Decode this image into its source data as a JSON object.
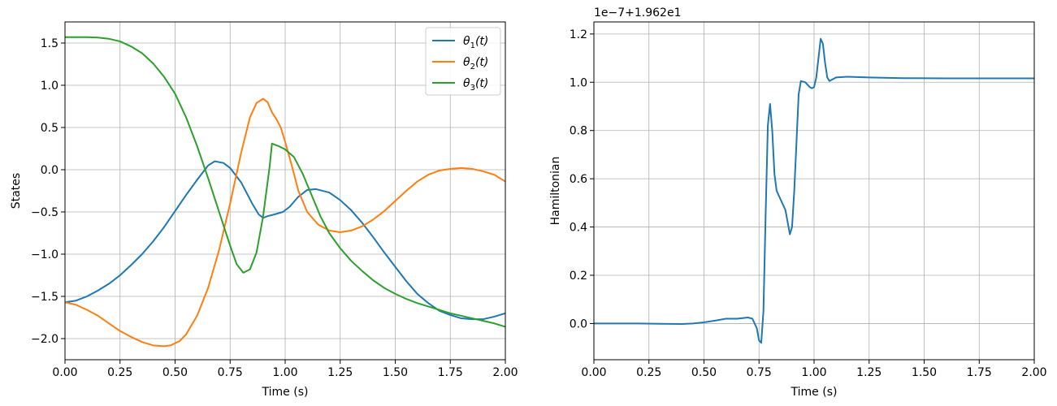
{
  "chart_data": [
    {
      "type": "line",
      "xlabel": "Time (s)",
      "ylabel": "States",
      "xlim": [
        0,
        2
      ],
      "ylim": [
        -2.25,
        1.75
      ],
      "xticks": [
        "0.00",
        "0.25",
        "0.50",
        "0.75",
        "1.00",
        "1.25",
        "1.50",
        "1.75",
        "2.00"
      ],
      "yticks": [
        "−2.0",
        "−1.5",
        "−1.0",
        "−0.5",
        "0.0",
        "0.5",
        "1.0",
        "1.5"
      ],
      "grid": true,
      "legend": "top-right",
      "series": [
        {
          "name": "θ",
          "sub": "1",
          "suffix": "(t)",
          "color": "#1f77b4",
          "points": [
            [
              0,
              -1.57
            ],
            [
              0.05,
              -1.55
            ],
            [
              0.1,
              -1.5
            ],
            [
              0.15,
              -1.43
            ],
            [
              0.2,
              -1.35
            ],
            [
              0.25,
              -1.25
            ],
            [
              0.3,
              -1.13
            ],
            [
              0.35,
              -1.0
            ],
            [
              0.4,
              -0.85
            ],
            [
              0.45,
              -0.68
            ],
            [
              0.5,
              -0.49
            ],
            [
              0.55,
              -0.3
            ],
            [
              0.6,
              -0.12
            ],
            [
              0.65,
              0.05
            ],
            [
              0.68,
              0.1
            ],
            [
              0.72,
              0.08
            ],
            [
              0.75,
              0.02
            ],
            [
              0.8,
              -0.15
            ],
            [
              0.85,
              -0.4
            ],
            [
              0.88,
              -0.53
            ],
            [
              0.9,
              -0.57
            ],
            [
              0.92,
              -0.55
            ],
            [
              0.95,
              -0.53
            ],
            [
              0.99,
              -0.5
            ],
            [
              1.02,
              -0.44
            ],
            [
              1.06,
              -0.32
            ],
            [
              1.1,
              -0.24
            ],
            [
              1.14,
              -0.23
            ],
            [
              1.2,
              -0.27
            ],
            [
              1.25,
              -0.36
            ],
            [
              1.3,
              -0.48
            ],
            [
              1.35,
              -0.63
            ],
            [
              1.4,
              -0.8
            ],
            [
              1.45,
              -0.98
            ],
            [
              1.5,
              -1.15
            ],
            [
              1.55,
              -1.32
            ],
            [
              1.6,
              -1.47
            ],
            [
              1.65,
              -1.58
            ],
            [
              1.7,
              -1.67
            ],
            [
              1.75,
              -1.72
            ],
            [
              1.8,
              -1.76
            ],
            [
              1.85,
              -1.77
            ],
            [
              1.9,
              -1.77
            ],
            [
              1.95,
              -1.74
            ],
            [
              2.0,
              -1.7
            ]
          ]
        },
        {
          "name": "θ",
          "sub": "2",
          "suffix": "(t)",
          "color": "#ff7f0e",
          "points": [
            [
              0,
              -1.57
            ],
            [
              0.05,
              -1.6
            ],
            [
              0.1,
              -1.66
            ],
            [
              0.15,
              -1.73
            ],
            [
              0.2,
              -1.82
            ],
            [
              0.25,
              -1.91
            ],
            [
              0.3,
              -1.98
            ],
            [
              0.35,
              -2.04
            ],
            [
              0.4,
              -2.08
            ],
            [
              0.45,
              -2.09
            ],
            [
              0.48,
              -2.08
            ],
            [
              0.52,
              -2.03
            ],
            [
              0.55,
              -1.95
            ],
            [
              0.6,
              -1.73
            ],
            [
              0.65,
              -1.4
            ],
            [
              0.7,
              -0.95
            ],
            [
              0.75,
              -0.4
            ],
            [
              0.8,
              0.2
            ],
            [
              0.84,
              0.62
            ],
            [
              0.87,
              0.79
            ],
            [
              0.9,
              0.84
            ],
            [
              0.92,
              0.8
            ],
            [
              0.94,
              0.68
            ],
            [
              0.96,
              0.6
            ],
            [
              0.98,
              0.5
            ],
            [
              1.0,
              0.33
            ],
            [
              1.03,
              0.05
            ],
            [
              1.06,
              -0.25
            ],
            [
              1.1,
              -0.5
            ],
            [
              1.15,
              -0.65
            ],
            [
              1.2,
              -0.72
            ],
            [
              1.25,
              -0.74
            ],
            [
              1.3,
              -0.72
            ],
            [
              1.35,
              -0.67
            ],
            [
              1.4,
              -0.59
            ],
            [
              1.45,
              -0.49
            ],
            [
              1.5,
              -0.37
            ],
            [
              1.55,
              -0.25
            ],
            [
              1.6,
              -0.14
            ],
            [
              1.65,
              -0.06
            ],
            [
              1.7,
              -0.01
            ],
            [
              1.75,
              0.01
            ],
            [
              1.8,
              0.02
            ],
            [
              1.85,
              0.01
            ],
            [
              1.9,
              -0.02
            ],
            [
              1.95,
              -0.06
            ],
            [
              2.0,
              -0.14
            ]
          ]
        },
        {
          "name": "θ",
          "sub": "3",
          "suffix": "(t)",
          "color": "#2ca02c",
          "points": [
            [
              0,
              1.57
            ],
            [
              0.05,
              1.57
            ],
            [
              0.1,
              1.57
            ],
            [
              0.15,
              1.565
            ],
            [
              0.2,
              1.55
            ],
            [
              0.25,
              1.52
            ],
            [
              0.3,
              1.46
            ],
            [
              0.35,
              1.38
            ],
            [
              0.4,
              1.26
            ],
            [
              0.45,
              1.1
            ],
            [
              0.5,
              0.9
            ],
            [
              0.55,
              0.62
            ],
            [
              0.6,
              0.28
            ],
            [
              0.65,
              -0.1
            ],
            [
              0.7,
              -0.5
            ],
            [
              0.75,
              -0.9
            ],
            [
              0.78,
              -1.12
            ],
            [
              0.81,
              -1.22
            ],
            [
              0.84,
              -1.18
            ],
            [
              0.87,
              -0.98
            ],
            [
              0.9,
              -0.55
            ],
            [
              0.93,
              0.05
            ],
            [
              0.94,
              0.31
            ],
            [
              0.97,
              0.28
            ],
            [
              1.0,
              0.24
            ],
            [
              1.04,
              0.15
            ],
            [
              1.08,
              -0.05
            ],
            [
              1.12,
              -0.3
            ],
            [
              1.16,
              -0.55
            ],
            [
              1.2,
              -0.75
            ],
            [
              1.25,
              -0.93
            ],
            [
              1.3,
              -1.08
            ],
            [
              1.35,
              -1.2
            ],
            [
              1.4,
              -1.31
            ],
            [
              1.45,
              -1.4
            ],
            [
              1.5,
              -1.47
            ],
            [
              1.55,
              -1.53
            ],
            [
              1.6,
              -1.58
            ],
            [
              1.65,
              -1.62
            ],
            [
              1.7,
              -1.66
            ],
            [
              1.75,
              -1.7
            ],
            [
              1.8,
              -1.73
            ],
            [
              1.85,
              -1.76
            ],
            [
              1.9,
              -1.79
            ],
            [
              1.95,
              -1.82
            ],
            [
              2.0,
              -1.86
            ]
          ]
        }
      ]
    },
    {
      "type": "line",
      "xlabel": "Time (s)",
      "ylabel": "Hamiltonian",
      "offset_text": "1e−7+1.962e1",
      "xlim": [
        0,
        2
      ],
      "ylim": [
        -0.15,
        1.25
      ],
      "xticks": [
        "0.00",
        "0.25",
        "0.50",
        "0.75",
        "1.00",
        "1.25",
        "1.50",
        "1.75",
        "2.00"
      ],
      "yticks": [
        "0.0",
        "0.2",
        "0.4",
        "0.6",
        "0.8",
        "1.0",
        "1.2"
      ],
      "grid": true,
      "series": [
        {
          "color": "#1f77b4",
          "points": [
            [
              0,
              0.0
            ],
            [
              0.1,
              0.0
            ],
            [
              0.2,
              0.0
            ],
            [
              0.3,
              -0.001
            ],
            [
              0.4,
              -0.002
            ],
            [
              0.45,
              0.0
            ],
            [
              0.5,
              0.005
            ],
            [
              0.55,
              0.012
            ],
            [
              0.6,
              0.02
            ],
            [
              0.65,
              0.02
            ],
            [
              0.7,
              0.025
            ],
            [
              0.72,
              0.02
            ],
            [
              0.74,
              -0.02
            ],
            [
              0.75,
              -0.07
            ],
            [
              0.76,
              -0.08
            ],
            [
              0.77,
              0.05
            ],
            [
              0.78,
              0.45
            ],
            [
              0.79,
              0.82
            ],
            [
              0.8,
              0.91
            ],
            [
              0.81,
              0.8
            ],
            [
              0.82,
              0.62
            ],
            [
              0.83,
              0.55
            ],
            [
              0.85,
              0.51
            ],
            [
              0.87,
              0.47
            ],
            [
              0.88,
              0.42
            ],
            [
              0.89,
              0.37
            ],
            [
              0.9,
              0.4
            ],
            [
              0.91,
              0.55
            ],
            [
              0.92,
              0.75
            ],
            [
              0.93,
              0.95
            ],
            [
              0.94,
              1.005
            ],
            [
              0.96,
              1.0
            ],
            [
              0.98,
              0.98
            ],
            [
              0.99,
              0.975
            ],
            [
              1.0,
              0.98
            ],
            [
              1.01,
              1.02
            ],
            [
              1.02,
              1.1
            ],
            [
              1.03,
              1.18
            ],
            [
              1.04,
              1.16
            ],
            [
              1.05,
              1.08
            ],
            [
              1.06,
              1.02
            ],
            [
              1.07,
              1.005
            ],
            [
              1.08,
              1.01
            ],
            [
              1.1,
              1.02
            ],
            [
              1.15,
              1.023
            ],
            [
              1.25,
              1.02
            ],
            [
              1.4,
              1.017
            ],
            [
              1.6,
              1.016
            ],
            [
              1.8,
              1.016
            ],
            [
              2.0,
              1.016
            ]
          ]
        }
      ]
    }
  ]
}
